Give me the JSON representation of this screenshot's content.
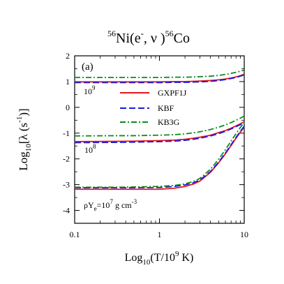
{
  "chart_data": {
    "type": "line",
    "title": {
      "pre": "56",
      "main": "Ni(e",
      "sup_minus": "-",
      "mid": ", ν )",
      "pre2": "56",
      "end": "Co"
    },
    "panel_label": "(a)",
    "xlabel": {
      "base": "Log",
      "sub": "10",
      "rest1": "(T/10",
      "sup": "9",
      "rest2": " K)"
    },
    "ylabel": {
      "base": "Log",
      "sub": "10",
      "rest1": "[λ (s",
      "sup": "-1",
      "rest2": ")]"
    },
    "x_scale": "log",
    "xlim": [
      0.1,
      10
    ],
    "ylim": [
      -4.5,
      2
    ],
    "x_ticks": [
      0.1,
      1,
      10
    ],
    "x_tick_labels": [
      "0.1",
      "1",
      "10"
    ],
    "y_ticks": [
      -4,
      -3,
      -2,
      -1,
      0,
      1,
      2
    ],
    "y_tick_labels": [
      "-4",
      "-3",
      "-2",
      "-1",
      "0",
      "1",
      "2"
    ],
    "grid": false,
    "legend_position": "center-right",
    "series_styles": [
      {
        "name": "GXPF1J",
        "color": "#e8141c",
        "dash": ""
      },
      {
        "name": "KBF",
        "color": "#1a1adc",
        "dash": "9,4"
      },
      {
        "name": "KB3G",
        "color": "#0f8a1e",
        "dash": "8,3,2,3"
      }
    ],
    "density_labels": [
      {
        "text": "10",
        "sup": "9"
      },
      {
        "text": "10",
        "sup": "8"
      },
      {
        "text": "ρY",
        "sub": "e",
        "rest": "=10",
        "sup": "7",
        "tail": " g cm",
        "sup2": "-3"
      }
    ],
    "x": [
      0.1,
      0.3,
      0.5,
      1,
      1.5,
      2,
      2.5,
      3,
      4,
      5,
      6,
      7,
      8,
      9,
      10
    ],
    "groups": [
      {
        "density": "1e9",
        "series": [
          {
            "name": "GXPF1J",
            "values": [
              0.99,
              0.99,
              0.99,
              0.99,
              1.0,
              1.0,
              1.01,
              1.02,
              1.04,
              1.07,
              1.1,
              1.14,
              1.18,
              1.23,
              1.29
            ]
          },
          {
            "name": "KBF",
            "values": [
              0.96,
              0.96,
              0.96,
              0.96,
              0.97,
              0.97,
              0.98,
              0.99,
              1.01,
              1.04,
              1.08,
              1.12,
              1.16,
              1.21,
              1.26
            ]
          },
          {
            "name": "KB3G",
            "values": [
              1.16,
              1.16,
              1.16,
              1.16,
              1.17,
              1.17,
              1.18,
              1.19,
              1.21,
              1.24,
              1.28,
              1.32,
              1.36,
              1.4,
              1.45
            ]
          }
        ]
      },
      {
        "density": "1e8",
        "series": [
          {
            "name": "GXPF1J",
            "values": [
              -1.33,
              -1.32,
              -1.31,
              -1.29,
              -1.27,
              -1.24,
              -1.2,
              -1.16,
              -1.08,
              -0.98,
              -0.9,
              -0.81,
              -0.72,
              -0.64,
              -0.56
            ]
          },
          {
            "name": "KBF",
            "values": [
              -1.37,
              -1.36,
              -1.35,
              -1.33,
              -1.31,
              -1.28,
              -1.24,
              -1.2,
              -1.11,
              -1.02,
              -0.93,
              -0.84,
              -0.75,
              -0.67,
              -0.59
            ]
          },
          {
            "name": "KB3G",
            "values": [
              -1.11,
              -1.1,
              -1.1,
              -1.08,
              -1.06,
              -1.03,
              -0.99,
              -0.95,
              -0.86,
              -0.77,
              -0.68,
              -0.59,
              -0.5,
              -0.42,
              -0.34
            ]
          }
        ]
      },
      {
        "density": "1e7",
        "series": [
          {
            "name": "GXPF1J",
            "values": [
              -3.18,
              -3.18,
              -3.18,
              -3.18,
              -3.14,
              -3.07,
              -2.98,
              -2.86,
              -2.52,
              -2.15,
              -1.8,
              -1.48,
              -1.2,
              -0.96,
              -0.76
            ]
          },
          {
            "name": "KBF",
            "values": [
              -3.12,
              -3.12,
              -3.12,
              -3.11,
              -3.07,
              -3.01,
              -2.93,
              -2.82,
              -2.49,
              -2.12,
              -1.77,
              -1.45,
              -1.17,
              -0.93,
              -0.73
            ]
          },
          {
            "name": "KB3G",
            "values": [
              -3.1,
              -3.1,
              -3.09,
              -3.07,
              -3.03,
              -2.97,
              -2.88,
              -2.76,
              -2.4,
              -2.01,
              -1.64,
              -1.31,
              -1.02,
              -0.78,
              -0.58
            ]
          }
        ]
      }
    ]
  }
}
